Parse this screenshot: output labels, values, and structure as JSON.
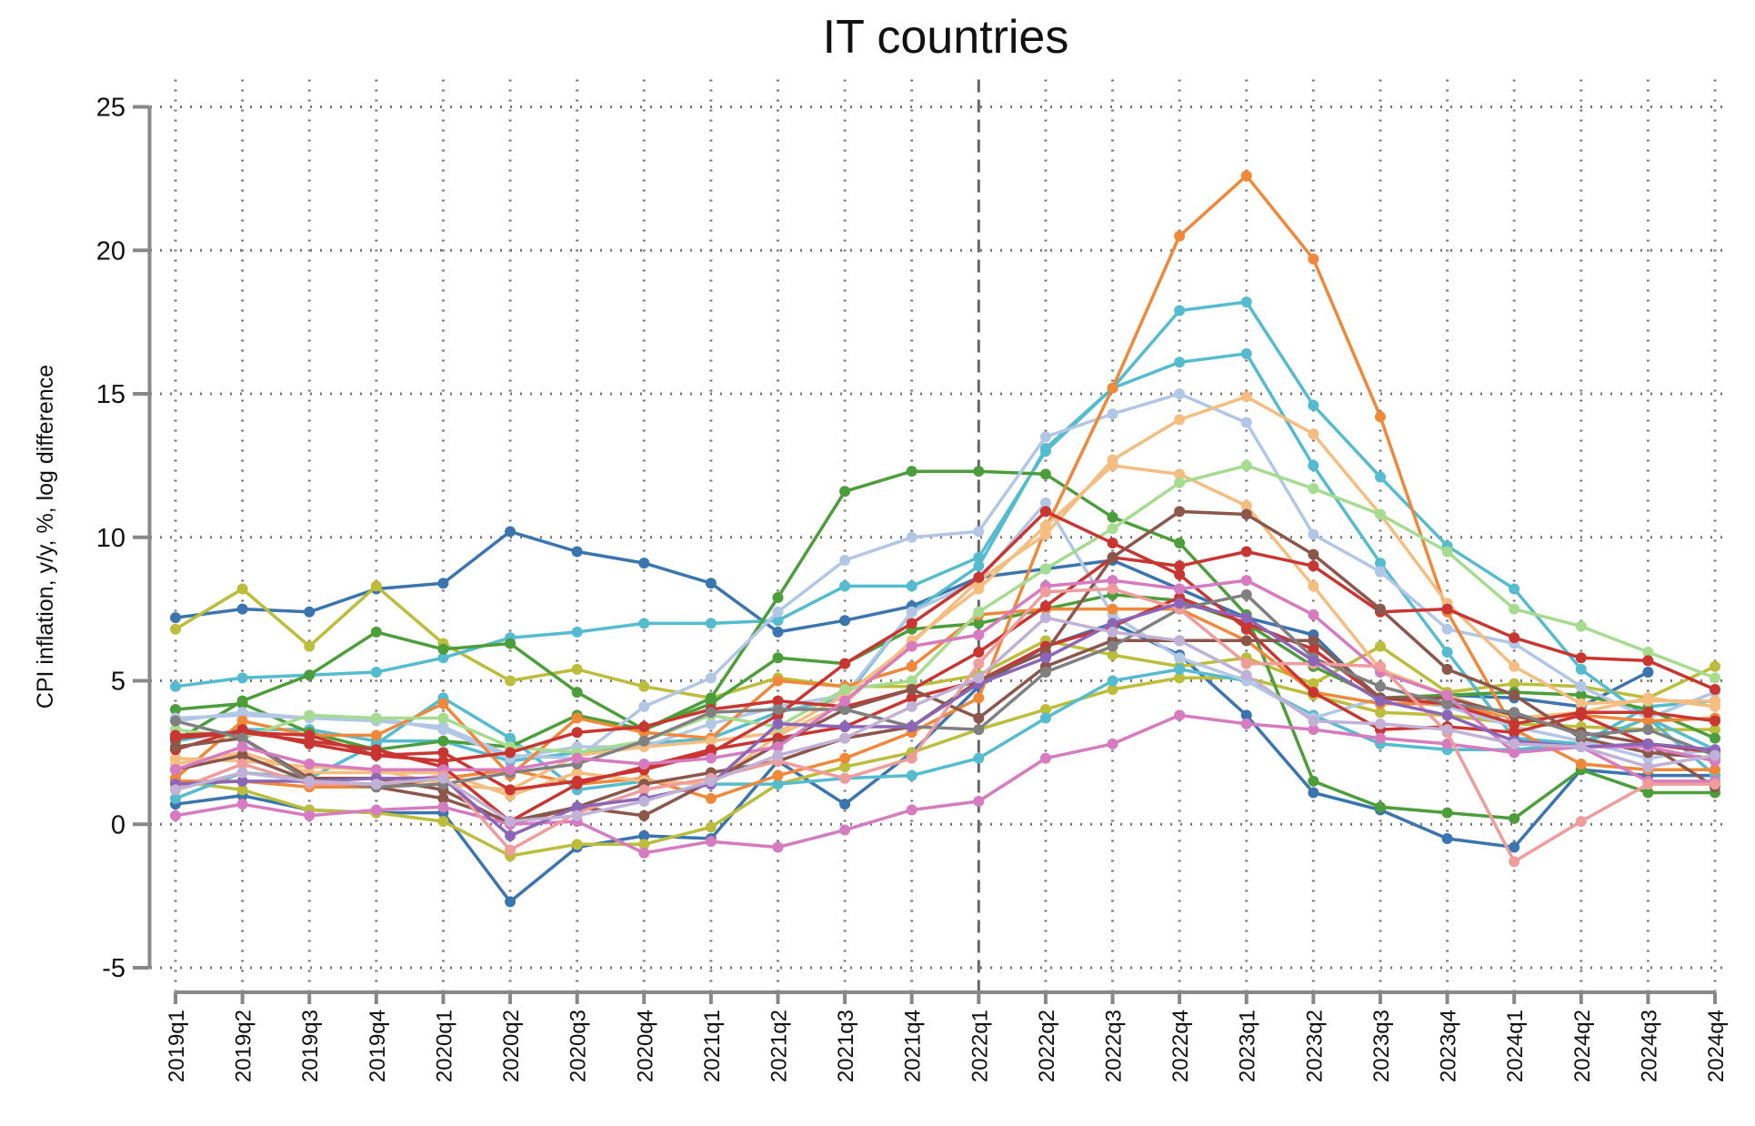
{
  "chart_data": {
    "type": "line",
    "title": "IT countries",
    "xlabel": "",
    "ylabel": "CPI inflation, y/y, %, log difference",
    "ylim": [
      -5,
      25
    ],
    "yticks": [
      -5,
      0,
      5,
      10,
      15,
      20,
      25
    ],
    "grid": true,
    "legend": "none",
    "vertical_marker": "2022q1",
    "x": [
      "2019q1",
      "2019q2",
      "2019q3",
      "2019q4",
      "2020q1",
      "2020q2",
      "2020q3",
      "2020q4",
      "2021q1",
      "2021q2",
      "2021q3",
      "2021q4",
      "2022q1",
      "2022q2",
      "2022q3",
      "2022q4",
      "2023q1",
      "2023q2",
      "2023q3",
      "2023q4",
      "2024q1",
      "2024q2",
      "2024q3",
      "2024q4"
    ],
    "series": [
      {
        "color": "#3a75b0",
        "values": [
          7.2,
          7.5,
          7.4,
          8.2,
          8.4,
          10.2,
          9.5,
          9.1,
          8.4,
          6.7,
          7.1,
          7.6,
          8.6,
          8.9,
          9.2,
          8.2,
          7.2,
          6.6,
          4.3,
          4.5,
          4.4,
          4.1,
          5.3,
          null
        ]
      },
      {
        "color": "#3a75b0",
        "values": [
          0.7,
          1.0,
          0.5,
          0.4,
          0.4,
          -2.7,
          -0.8,
          -0.4,
          -0.5,
          2.2,
          0.7,
          2.5,
          4.8,
          6.2,
          7.0,
          5.9,
          3.8,
          1.1,
          0.5,
          -0.5,
          -0.8,
          1.9,
          1.7,
          1.7
        ]
      },
      {
        "color": "#bcbd3a",
        "values": [
          6.8,
          8.2,
          6.2,
          8.3,
          6.3,
          5.0,
          5.4,
          4.8,
          4.4,
          5.1,
          4.8,
          4.8,
          5.2,
          6.4,
          5.9,
          5.5,
          5.8,
          4.9,
          6.2,
          4.6,
          4.9,
          4.8,
          4.4,
          5.5
        ]
      },
      {
        "color": "#bcbd3a",
        "values": [
          1.5,
          1.2,
          0.5,
          0.4,
          0.1,
          -1.1,
          -0.7,
          -0.7,
          -0.1,
          1.4,
          2.0,
          2.5,
          3.3,
          4.0,
          4.7,
          5.1,
          5.1,
          4.5,
          3.9,
          3.8,
          3.5,
          3.4,
          3.3,
          3.3
        ]
      },
      {
        "color": "#55bcd0",
        "values": [
          4.8,
          5.1,
          5.2,
          5.3,
          5.8,
          6.5,
          6.7,
          7.0,
          7.0,
          7.1,
          8.3,
          8.3,
          9.3,
          13.0,
          15.2,
          17.9,
          18.2,
          14.6,
          12.1,
          9.7,
          8.2,
          5.4,
          3.7,
          2.6
        ]
      },
      {
        "color": "#55bcd0",
        "values": [
          0.9,
          1.8,
          1.6,
          2.8,
          4.4,
          3.0,
          1.2,
          1.5,
          1.4,
          1.4,
          1.6,
          1.7,
          2.3,
          3.7,
          5.0,
          5.4,
          5.0,
          3.8,
          2.8,
          2.6,
          2.6,
          2.8,
          3.7,
          1.7
        ]
      },
      {
        "color": "#55bcd0",
        "values": [
          2.9,
          3.3,
          3.3,
          2.9,
          2.9,
          2.2,
          2.5,
          2.8,
          3.0,
          3.9,
          4.4,
          7.4,
          9.0,
          13.1,
          15.2,
          16.1,
          16.4,
          12.5,
          9.1,
          6.0,
          3.0,
          2.8,
          4.1,
          4.3
        ]
      },
      {
        "color": "#4c9e3a",
        "values": [
          2.9,
          4.3,
          5.2,
          6.7,
          6.1,
          6.3,
          4.6,
          3.3,
          4.4,
          7.9,
          11.6,
          12.3,
          12.3,
          12.2,
          10.7,
          9.8,
          7.3,
          1.5,
          0.6,
          0.4,
          0.2,
          1.9,
          1.1,
          1.1
        ]
      },
      {
        "color": "#4c9e3a",
        "values": [
          4.0,
          4.2,
          3.2,
          2.6,
          2.9,
          2.7,
          3.8,
          3.3,
          4.2,
          5.8,
          5.6,
          6.8,
          7.0,
          7.5,
          8.0,
          7.8,
          7.0,
          5.5,
          4.4,
          4.5,
          4.6,
          4.5,
          4.0,
          3.0
        ]
      },
      {
        "color": "#b2c6e6",
        "values": [
          3.7,
          3.8,
          3.7,
          3.6,
          3.4,
          2.4,
          2.3,
          4.1,
          5.1,
          7.4,
          9.2,
          10.0,
          10.2,
          13.5,
          14.3,
          15.0,
          14.0,
          10.1,
          8.8,
          6.8,
          6.3,
          4.8,
          3.7,
          4.6
        ]
      },
      {
        "color": "#b2c6e6",
        "values": [
          3.6,
          3.9,
          3.7,
          3.7,
          3.3,
          2.3,
          2.7,
          2.7,
          3.5,
          4.1,
          4.5,
          7.4,
          8.5,
          11.2,
          7.3,
          5.8,
          5.0,
          3.7,
          4.4,
          4.1,
          3.4,
          2.9,
          2.3,
          2.6
        ]
      },
      {
        "color": "#f0883a",
        "values": [
          1.5,
          1.5,
          1.3,
          1.3,
          1.6,
          1.9,
          1.4,
          1.6,
          0.9,
          1.7,
          2.3,
          3.2,
          4.4,
          10.3,
          15.2,
          20.5,
          22.6,
          19.7,
          14.2,
          7.4,
          3.3,
          2.1,
          1.9,
          1.9
        ]
      },
      {
        "color": "#f0883a",
        "values": [
          1.6,
          3.6,
          3.1,
          3.1,
          4.2,
          1.7,
          3.7,
          3.2,
          3.0,
          5.0,
          4.8,
          5.5,
          7.3,
          7.5,
          7.5,
          7.5,
          6.4,
          4.6,
          4.2,
          4.2,
          3.7,
          3.8,
          3.6,
          3.7
        ]
      },
      {
        "color": "#f5bd80",
        "values": [
          2.3,
          2.2,
          2.0,
          1.9,
          1.4,
          1.2,
          2.4,
          2.7,
          2.9,
          3.2,
          4.5,
          6.3,
          8.5,
          10.1,
          12.7,
          14.1,
          14.9,
          13.6,
          10.8,
          7.7,
          5.5,
          4.2,
          4.3,
          4.3
        ]
      },
      {
        "color": "#f5bd80",
        "values": [
          2.1,
          2.5,
          1.8,
          1.8,
          1.8,
          1.0,
          1.8,
          1.5,
          1.4,
          3.1,
          4.2,
          6.4,
          8.2,
          10.4,
          12.5,
          12.2,
          11.1,
          8.3,
          5.4,
          4.5,
          3.7,
          3.9,
          4.4,
          4.1
        ]
      },
      {
        "color": "#a5dc8f",
        "values": [
          3.3,
          3.0,
          3.8,
          3.7,
          3.7,
          2.7,
          2.5,
          2.9,
          3.8,
          3.4,
          4.7,
          5.0,
          7.4,
          8.9,
          10.3,
          11.9,
          12.5,
          11.7,
          10.8,
          9.5,
          7.5,
          6.9,
          6.0,
          5.1
        ]
      },
      {
        "color": "#c93530",
        "values": [
          2.6,
          3.3,
          2.8,
          2.4,
          2.5,
          1.2,
          1.5,
          1.9,
          2.5,
          3.8,
          5.6,
          7.0,
          8.6,
          10.9,
          9.8,
          8.7,
          6.8,
          4.6,
          3.3,
          3.4,
          3.2,
          3.8,
          2.8,
          2.5
        ]
      },
      {
        "color": "#c93530",
        "values": [
          3.1,
          3.2,
          3.1,
          2.4,
          2.2,
          2.5,
          3.2,
          3.4,
          4.0,
          4.3,
          4.1,
          4.7,
          6.0,
          7.6,
          9.3,
          9.0,
          9.5,
          9.0,
          7.4,
          7.5,
          6.5,
          5.8,
          5.7,
          4.7
        ]
      },
      {
        "color": "#c93530",
        "values": [
          3.0,
          3.2,
          2.9,
          2.6,
          2.0,
          0.1,
          1.4,
          2.0,
          2.6,
          3.0,
          3.4,
          4.4,
          5.0,
          6.2,
          6.9,
          7.9,
          7.0,
          6.1,
          4.4,
          4.2,
          3.5,
          3.9,
          3.9,
          3.6
        ]
      },
      {
        "color": "#8c564b",
        "values": [
          2.7,
          3.0,
          1.6,
          1.6,
          1.2,
          0.0,
          0.6,
          0.3,
          1.5,
          2.8,
          4.0,
          4.7,
          3.7,
          5.5,
          6.4,
          6.4,
          6.4,
          6.4,
          4.4,
          4.4,
          3.8,
          3.2,
          2.8,
          1.3
        ]
      },
      {
        "color": "#8c564b",
        "values": [
          1.9,
          2.4,
          1.5,
          1.3,
          0.9,
          0.1,
          0.6,
          1.4,
          1.8,
          2.2,
          3.0,
          3.4,
          5.0,
          6.0,
          9.3,
          10.9,
          10.8,
          9.4,
          7.5,
          5.4,
          4.5,
          3.0,
          2.5,
          2.3
        ]
      },
      {
        "color": "#808080",
        "values": [
          3.6,
          3.0,
          1.5,
          1.3,
          1.4,
          1.8,
          2.1,
          2.9,
          3.9,
          4.0,
          4.0,
          3.4,
          3.3,
          5.3,
          6.2,
          7.5,
          8.0,
          5.8,
          4.8,
          4.2,
          3.9,
          3.1,
          3.3,
          2.4
        ]
      },
      {
        "color": "#d77bc1",
        "values": [
          0.3,
          0.7,
          0.3,
          0.5,
          0.6,
          0.0,
          0.1,
          -1.0,
          -0.6,
          -0.8,
          -0.2,
          0.5,
          0.8,
          2.3,
          2.8,
          3.8,
          3.5,
          3.3,
          3.0,
          2.8,
          2.5,
          2.7,
          2.7,
          2.2
        ]
      },
      {
        "color": "#d77bc1",
        "values": [
          1.9,
          2.7,
          2.1,
          1.9,
          1.9,
          1.9,
          2.3,
          2.1,
          2.3,
          2.7,
          4.3,
          6.2,
          6.6,
          8.3,
          8.5,
          8.2,
          8.5,
          7.3,
          5.3,
          4.5,
          2.5,
          2.7,
          1.5,
          1.5
        ]
      },
      {
        "color": "#f09c9a",
        "values": [
          1.2,
          2.1,
          1.4,
          1.4,
          1.7,
          -0.9,
          0.4,
          1.2,
          1.6,
          2.2,
          1.6,
          2.3,
          5.6,
          8.1,
          8.2,
          7.5,
          5.6,
          5.6,
          5.5,
          3.2,
          -1.3,
          0.1,
          1.4,
          1.4
        ]
      },
      {
        "color": "#8b65b8",
        "values": [
          1.4,
          1.5,
          1.5,
          1.6,
          1.6,
          -0.4,
          0.6,
          0.9,
          1.4,
          3.5,
          3.4,
          3.4,
          4.9,
          5.8,
          7.0,
          7.7,
          7.2,
          5.7,
          4.3,
          3.8,
          2.9,
          2.7,
          2.8,
          2.6
        ]
      },
      {
        "color": "#c2b1d6",
        "values": [
          1.2,
          1.8,
          1.5,
          1.4,
          1.6,
          0.1,
          0.3,
          0.8,
          1.5,
          2.4,
          3.0,
          4.1,
          5.1,
          7.2,
          6.7,
          6.4,
          5.2,
          3.6,
          3.5,
          3.3,
          2.8,
          2.7,
          2.0,
          2.4
        ]
      }
    ]
  }
}
